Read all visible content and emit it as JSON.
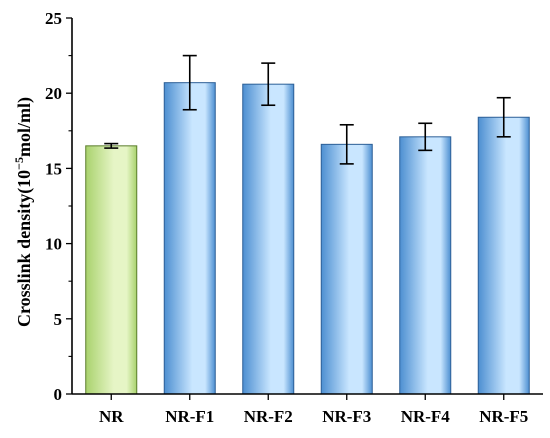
{
  "chart_data": {
    "type": "bar",
    "title": "",
    "xlabel": "",
    "ylabel": "Crosslink density(10",
    "ylabel_superscript": "−5",
    "ylabel_suffix": "mol/ml)",
    "categories": [
      "NR",
      "NR-F1",
      "NR-F2",
      "NR-F3",
      "NR-F4",
      "NR-F5"
    ],
    "values": [
      16.5,
      20.7,
      20.6,
      16.6,
      17.1,
      18.4
    ],
    "errors": [
      0.15,
      1.8,
      1.4,
      1.3,
      0.9,
      1.3
    ],
    "ylim": [
      0,
      25
    ],
    "yticks": [
      0,
      5,
      10,
      15,
      20,
      25
    ],
    "grid": false,
    "legend": "none",
    "bar_colors": [
      "#a9d26d",
      "#4d8fd1",
      "#4d8fd1",
      "#4d8fd1",
      "#4d8fd1",
      "#4d8fd1"
    ],
    "bar_highlight_colors": [
      "#e6f5c6",
      "#c9e6ff",
      "#c9e6ff",
      "#c9e6ff",
      "#c9e6ff",
      "#c9e6ff"
    ],
    "bar_edge_colors": [
      "#5a7d2a",
      "#2c5f96",
      "#2c5f96",
      "#2c5f96",
      "#2c5f96",
      "#2c5f96"
    ]
  }
}
